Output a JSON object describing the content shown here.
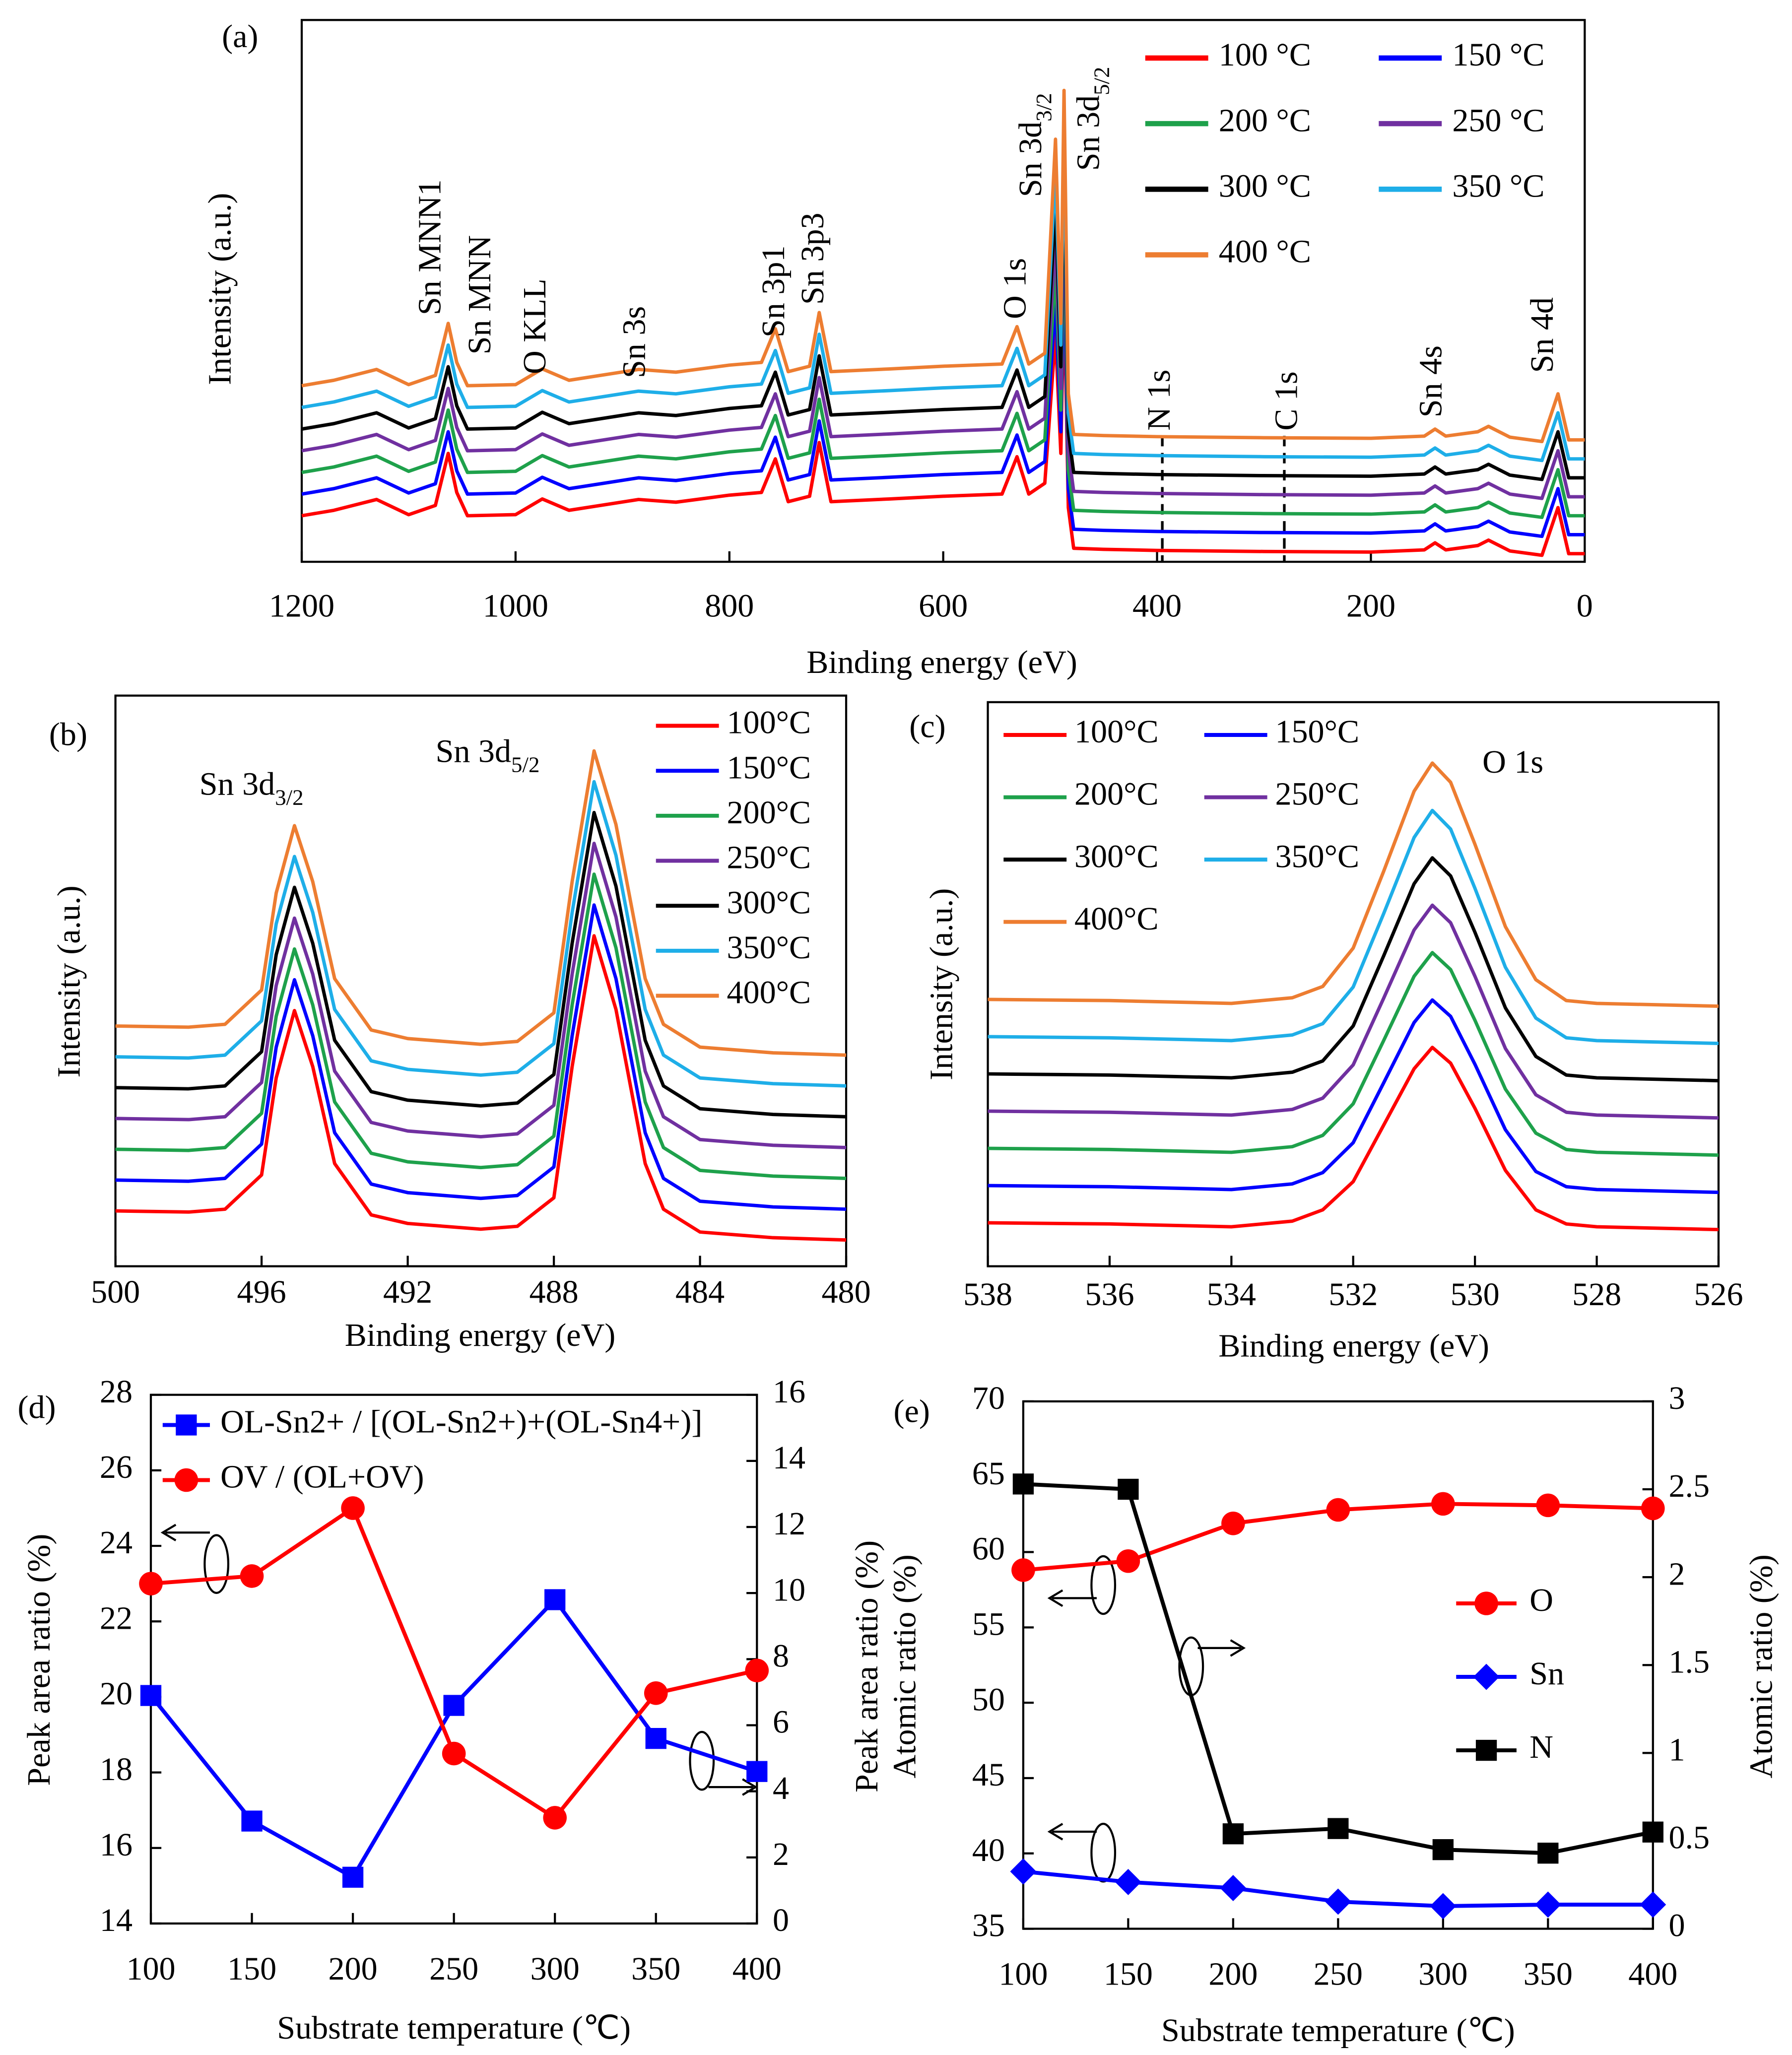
{
  "chart_data": [
    {
      "type": "line",
      "panel_label": "(a)",
      "xlabel": "Binding energy (eV)",
      "ylabel": "Intensity (a.u.)",
      "x": [
        1200,
        1170,
        1130,
        1100,
        1075,
        1063,
        1055,
        1045,
        1000,
        975,
        950,
        885,
        850,
        800,
        770,
        757,
        745,
        725,
        716,
        705,
        650,
        600,
        545,
        531,
        520,
        505,
        495,
        490,
        487,
        483,
        478,
        450,
        400,
        300,
        200,
        150,
        140,
        130,
        100,
        90,
        70,
        40,
        25,
        15,
        0
      ],
      "xlim": [
        1200,
        0
      ],
      "xticks": [
        1200,
        1000,
        800,
        600,
        400,
        200,
        0
      ],
      "ylim": [
        0,
        100
      ],
      "series": [
        {
          "name": "100 °C",
          "color": "#ff0000",
          "values": [
            8.5,
            9.5,
            11.5,
            8.7,
            10.4,
            20,
            12.8,
            8.5,
            8.7,
            11.6,
            9.5,
            11.5,
            11,
            12.3,
            12.8,
            19,
            11.1,
            12.1,
            22,
            11.1,
            11.6,
            12.1,
            12.5,
            19.4,
            12.5,
            14.5,
            42,
            20,
            51,
            10,
            2.5,
            2.3,
            2.1,
            1.9,
            1.8,
            2.2,
            3.5,
            2.2,
            3,
            4,
            2,
            1.2,
            10,
            1.5,
            1.5
          ]
        },
        {
          "name": "150 °C",
          "color": "#0000ff",
          "values": [
            12.5,
            13.5,
            15.5,
            12.7,
            14.4,
            24,
            16.8,
            12.5,
            12.7,
            15.6,
            13.5,
            15.5,
            15,
            16.3,
            16.8,
            23,
            15.1,
            16.1,
            26,
            15.1,
            15.6,
            16.1,
            16.5,
            23.4,
            16.5,
            18.5,
            48,
            24,
            57,
            13.5,
            6,
            5.8,
            5.6,
            5.4,
            5.3,
            5.7,
            7,
            5.7,
            6.5,
            7.5,
            5.5,
            4.7,
            13.5,
            5,
            5
          ]
        },
        {
          "name": "200 °C",
          "color": "#1ea14b",
          "values": [
            16.5,
            17.5,
            19.5,
            16.7,
            18.4,
            28,
            20.8,
            16.5,
            16.7,
            19.6,
            17.5,
            19.5,
            19,
            20.3,
            20.8,
            27,
            19.1,
            20.1,
            30,
            19.1,
            19.6,
            20.1,
            20.5,
            27.4,
            20.5,
            22.5,
            54,
            28,
            63,
            17,
            9.5,
            9.3,
            9.1,
            8.9,
            8.8,
            9.2,
            10.5,
            9.2,
            10,
            11,
            9,
            8.2,
            17,
            8.5,
            8.5
          ]
        },
        {
          "name": "250 °C",
          "color": "#7030a0",
          "values": [
            20.5,
            21.5,
            23.5,
            20.7,
            22.4,
            32,
            24.8,
            20.5,
            20.7,
            23.6,
            21.5,
            23.5,
            23,
            24.3,
            24.8,
            31,
            23.1,
            24.1,
            34,
            23.1,
            23.6,
            24.1,
            24.5,
            31.4,
            24.5,
            26.5,
            60,
            32,
            69,
            20.5,
            13,
            12.8,
            12.6,
            12.4,
            12.3,
            12.7,
            14,
            12.7,
            13.5,
            14.5,
            12.5,
            11.7,
            20.5,
            12,
            12
          ]
        },
        {
          "name": "300 °C",
          "color": "#000000",
          "values": [
            24.5,
            25.5,
            27.5,
            24.7,
            26.4,
            36,
            28.8,
            24.5,
            24.7,
            27.6,
            25.5,
            27.5,
            27,
            28.3,
            28.8,
            35,
            27.1,
            28.1,
            38,
            27.1,
            27.6,
            28.1,
            28.5,
            35.4,
            28.5,
            30.5,
            66,
            36,
            75,
            24,
            16.5,
            16.3,
            16.1,
            15.9,
            15.8,
            16.2,
            17.5,
            16.2,
            17,
            18,
            16,
            15.2,
            24,
            15.5,
            15.5
          ]
        },
        {
          "name": "350 °C",
          "color": "#1eaee8",
          "values": [
            28.5,
            29.5,
            31.5,
            28.7,
            30.4,
            40,
            32.8,
            28.5,
            28.7,
            31.6,
            29.5,
            31.5,
            31,
            32.3,
            32.8,
            39,
            31.1,
            32.1,
            42,
            31.1,
            31.6,
            32.1,
            32.5,
            39.4,
            32.5,
            34.5,
            72,
            40,
            81,
            27.5,
            20,
            19.8,
            19.6,
            19.4,
            19.3,
            19.7,
            21,
            19.7,
            20.5,
            21.5,
            19.5,
            18.7,
            27.5,
            19,
            19
          ]
        },
        {
          "name": "400 °C",
          "color": "#ed7d31",
          "values": [
            32.5,
            33.5,
            35.5,
            32.7,
            34.4,
            44,
            36.8,
            32.5,
            32.7,
            35.6,
            33.5,
            35.5,
            35,
            36.3,
            36.8,
            43,
            35.1,
            36.1,
            46,
            35.1,
            35.6,
            36.1,
            36.5,
            43.4,
            36.5,
            38.5,
            78,
            44,
            87,
            31,
            23.5,
            23.3,
            23.1,
            22.9,
            22.8,
            23.2,
            24.5,
            23.2,
            24,
            25,
            23,
            22.2,
            31,
            22.5,
            22.5
          ]
        }
      ],
      "annotations": [
        {
          "text": "Sn MNN1"
        },
        {
          "text": "Sn MNN"
        },
        {
          "text": "O KLL"
        },
        {
          "text": "Sn 3s"
        },
        {
          "text": "Sn 3p1"
        },
        {
          "text": "Sn 3p3"
        },
        {
          "text": "O 1s"
        },
        {
          "text": "Sn 3d",
          "sub": "3/2"
        },
        {
          "text": "Sn 3d",
          "sub": "5/2"
        },
        {
          "text": "N 1s"
        },
        {
          "text": "C 1s"
        },
        {
          "text": "Sn 4s"
        },
        {
          "text": "Sn 4d"
        }
      ]
    },
    {
      "type": "line",
      "panel_label": "(b)",
      "xlabel": "Binding energy (eV)",
      "ylabel": "Intensity (a.u.)",
      "x": [
        500,
        498,
        497,
        496,
        495.6,
        495.1,
        494.6,
        494,
        493,
        492,
        490,
        489,
        488,
        487.5,
        486.9,
        486.3,
        485.5,
        485,
        484,
        482,
        480
      ],
      "xlim": [
        500,
        480
      ],
      "xticks": [
        500,
        496,
        492,
        488,
        484,
        480
      ],
      "ylim": [
        0,
        100
      ],
      "series": [
        {
          "name": "100°C",
          "color": "#ff0000",
          "values": [
            9.7,
            9.5,
            10,
            16,
            33,
            44.8,
            35,
            18,
            9,
            7.5,
            6.5,
            7,
            12,
            35,
            57.9,
            45,
            18,
            10,
            6,
            5,
            4.6
          ]
        },
        {
          "name": "150°C",
          "color": "#0000ff",
          "values": [
            15.1,
            14.9,
            15.4,
            21.4,
            38.4,
            50.2,
            40.4,
            23.4,
            14.4,
            12.9,
            11.9,
            12.4,
            17.4,
            40.4,
            63.3,
            50.4,
            23.4,
            15.4,
            11.4,
            10.4,
            10
          ]
        },
        {
          "name": "200°C",
          "color": "#1ea14b",
          "values": [
            20.5,
            20.3,
            20.8,
            26.8,
            43.8,
            55.6,
            45.8,
            28.8,
            19.8,
            18.3,
            17.3,
            17.8,
            22.8,
            45.8,
            68.7,
            55.8,
            28.8,
            20.8,
            16.8,
            15.8,
            15.4
          ]
        },
        {
          "name": "250°C",
          "color": "#7030a0",
          "values": [
            25.9,
            25.7,
            26.2,
            32.2,
            49.2,
            61,
            51.2,
            34.2,
            25.2,
            23.7,
            22.7,
            23.2,
            28.2,
            51.2,
            74.1,
            61.2,
            34.2,
            26.2,
            22.2,
            21.2,
            20.8
          ]
        },
        {
          "name": "300°C",
          "color": "#000000",
          "values": [
            31.3,
            31.1,
            31.6,
            37.6,
            54.6,
            66.4,
            56.6,
            39.6,
            30.6,
            29.1,
            28.1,
            28.6,
            33.6,
            56.6,
            79.5,
            66.6,
            39.6,
            31.6,
            27.6,
            26.6,
            26.2
          ]
        },
        {
          "name": "350°C",
          "color": "#1eaee8",
          "values": [
            36.7,
            36.5,
            37,
            43,
            60,
            71.8,
            62,
            45,
            36,
            34.5,
            33.5,
            34,
            39,
            62,
            84.9,
            72,
            45,
            37,
            33,
            32,
            31.6
          ]
        },
        {
          "name": "400°C",
          "color": "#ed7d31",
          "values": [
            42.1,
            41.9,
            42.4,
            48.4,
            65.4,
            77.2,
            67.4,
            50.4,
            41.4,
            39.9,
            38.9,
            39.4,
            44.4,
            67.4,
            90.3,
            77.4,
            50.4,
            42.4,
            38.4,
            37.4,
            37
          ]
        }
      ],
      "annotations": [
        {
          "text": "Sn 3d",
          "sub": "3/2"
        },
        {
          "text": "Sn 3d",
          "sub": "5/2"
        }
      ]
    },
    {
      "type": "line",
      "panel_label": "(c)",
      "xlabel": "Binding energy (eV)",
      "ylabel": "Intensity (a.u.)",
      "x": [
        538,
        536,
        534,
        533,
        532.5,
        532,
        531.5,
        531,
        530.7,
        530.4,
        530,
        529.5,
        529,
        528.5,
        528,
        526
      ],
      "xlim": [
        538,
        526
      ],
      "xticks": [
        538,
        536,
        534,
        532,
        530,
        528,
        526
      ],
      "ylim": [
        0,
        100
      ],
      "series": [
        {
          "name": "100°C",
          "color": "#ff0000",
          "values": [
            7.7,
            7.5,
            7,
            8,
            10,
            15,
            25,
            35,
            38.8,
            36,
            28,
            17,
            10,
            7.5,
            7,
            6.5
          ]
        },
        {
          "name": "150°C",
          "color": "#0000ff",
          "values": [
            14.3,
            14.1,
            13.6,
            14.6,
            16.6,
            21.9,
            32.5,
            43.2,
            47.2,
            44.3,
            35.8,
            24.2,
            16.8,
            14.1,
            13.6,
            13.1
          ]
        },
        {
          "name": "200°C",
          "color": "#1ea14b",
          "values": [
            20.9,
            20.7,
            20.2,
            21.2,
            23.2,
            28.8,
            40,
            51.4,
            55.6,
            52.6,
            43.6,
            31.4,
            23.6,
            20.7,
            20.2,
            19.7
          ]
        },
        {
          "name": "250°C",
          "color": "#7030a0",
          "values": [
            27.5,
            27.3,
            26.8,
            27.8,
            29.8,
            35.7,
            47.5,
            59.6,
            64,
            60.9,
            51.4,
            38.6,
            30.4,
            27.3,
            26.8,
            26.3
          ]
        },
        {
          "name": "300°C",
          "color": "#000000",
          "values": [
            34.1,
            33.9,
            33.4,
            34.4,
            36.4,
            42.6,
            55,
            67.8,
            72.4,
            69.2,
            59.2,
            45.8,
            37.2,
            33.9,
            33.4,
            32.9
          ]
        },
        {
          "name": "350°C",
          "color": "#1eaee8",
          "values": [
            40.7,
            40.5,
            40,
            41,
            43,
            49.5,
            62.5,
            76,
            80.8,
            77.5,
            67,
            53,
            44,
            40.5,
            40,
            39.5
          ]
        },
        {
          "name": "400°C",
          "color": "#ed7d31",
          "values": [
            47.3,
            47.1,
            46.6,
            47.6,
            49.6,
            56.4,
            70,
            84.2,
            89.2,
            85.8,
            74.8,
            60.2,
            50.8,
            47.1,
            46.6,
            46.1
          ]
        }
      ],
      "annotations": [
        {
          "text": "O 1s"
        }
      ]
    },
    {
      "type": "line",
      "panel_label": "(d)",
      "xlabel": "Substrate temperature (℃)",
      "ylabel": "Peak area ratio (%)",
      "x": [
        100,
        150,
        200,
        250,
        300,
        350,
        400
      ],
      "xlim": [
        100,
        400
      ],
      "xticks": [
        100,
        150,
        200,
        250,
        300,
        350,
        400
      ],
      "ylim": [
        14,
        28
      ],
      "yticks": [
        14,
        16,
        18,
        20,
        22,
        24,
        26,
        28
      ],
      "y2lim": [
        0,
        16
      ],
      "y2ticks": [
        0,
        2,
        4,
        6,
        8,
        10,
        12,
        14,
        16
      ],
      "series": [
        {
          "name": "OL-Sn2+ / [(OL-Sn2+)+(OL-Sn4+)]",
          "color": "#0000ff",
          "marker": "square",
          "axis": "y2",
          "values": [
            6.9,
            3.1,
            1.4,
            6.6,
            9.8,
            5.6,
            4.6
          ]
        },
        {
          "name": "OV / (OL+OV)",
          "color": "#ff0000",
          "marker": "circle",
          "values": [
            23.0,
            23.2,
            25.0,
            18.5,
            16.8,
            20.1,
            20.7
          ]
        }
      ]
    },
    {
      "type": "line",
      "panel_label": "(e)",
      "xlabel": "Substrate temperature (℃)",
      "ylabel": [
        "Peak area ratio (%)",
        "Atomic  ratio (%)"
      ],
      "y2label": "Atomic ratio (%)",
      "x": [
        100,
        150,
        200,
        250,
        300,
        350,
        400
      ],
      "xlim": [
        100,
        400
      ],
      "xticks": [
        100,
        150,
        200,
        250,
        300,
        350,
        400
      ],
      "ylim": [
        35,
        70
      ],
      "yticks": [
        35,
        40,
        45,
        50,
        55,
        60,
        65,
        70
      ],
      "y2lim": [
        0,
        3
      ],
      "y2ticks": [
        0,
        0.5,
        1,
        1.5,
        2,
        2.5,
        3
      ],
      "series": [
        {
          "name": "O",
          "color": "#ff0000",
          "marker": "circle",
          "values": [
            58.8,
            59.4,
            61.9,
            62.8,
            63.2,
            63.1,
            62.9
          ]
        },
        {
          "name": "Sn",
          "color": "#0000ff",
          "marker": "diamond",
          "values": [
            38.8,
            38.1,
            37.7,
            36.8,
            36.5,
            36.6,
            36.6
          ]
        },
        {
          "name": "N",
          "color": "#000000",
          "marker": "square",
          "axis": "y2",
          "values": [
            2.53,
            2.5,
            0.54,
            0.57,
            0.45,
            0.43,
            0.55
          ]
        }
      ]
    }
  ]
}
